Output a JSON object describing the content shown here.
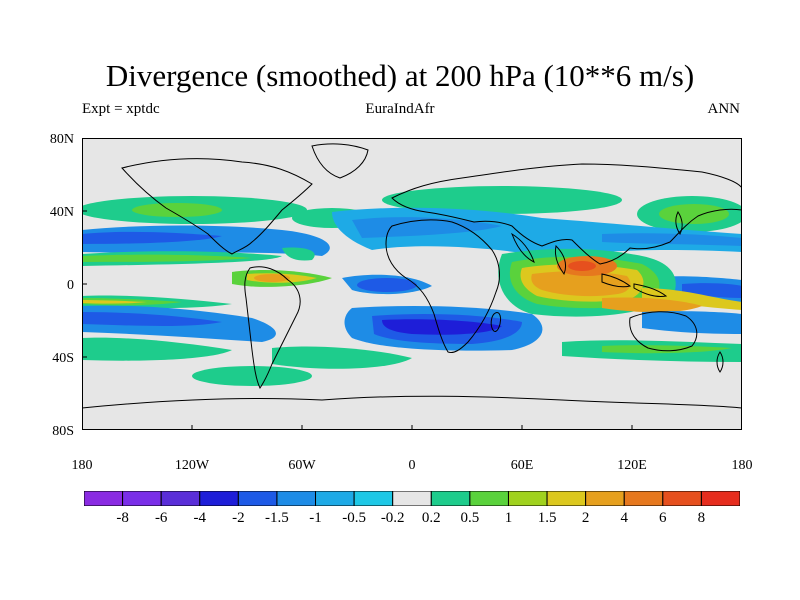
{
  "title": "Divergence (smoothed) at 200 hPa (10**6 m/s)",
  "subtitles": {
    "left": "Expt = xptdc",
    "center": "EuraIndAfr",
    "right": "ANN"
  },
  "axes": {
    "y_ticks": [
      "80N",
      "40N",
      "0",
      "40S",
      "80S"
    ],
    "x_ticks": [
      "180",
      "120W",
      "60W",
      "0",
      "60E",
      "120E",
      "180"
    ]
  },
  "colorbar": {
    "labels": [
      "-8",
      "-6",
      "-4",
      "-2",
      "-1.5",
      "-1",
      "-0.5",
      "-0.2",
      "0.2",
      "0.5",
      "1",
      "1.5",
      "2",
      "4",
      "6",
      "8"
    ],
    "colors": [
      "#8a2be2",
      "#7a2ee8",
      "#5a2ed8",
      "#1e1ed8",
      "#1e5ae6",
      "#1e8ce6",
      "#1eaae6",
      "#1ec8e6",
      "#e6e6e6",
      "#1ecc8c",
      "#5ad23c",
      "#a0d21e",
      "#dcc81e",
      "#e6a01e",
      "#e6781e",
      "#e6501e",
      "#e62d1e"
    ]
  },
  "palette": {
    "land_outline": "#000000",
    "neutral": "#e6e6e6"
  }
}
